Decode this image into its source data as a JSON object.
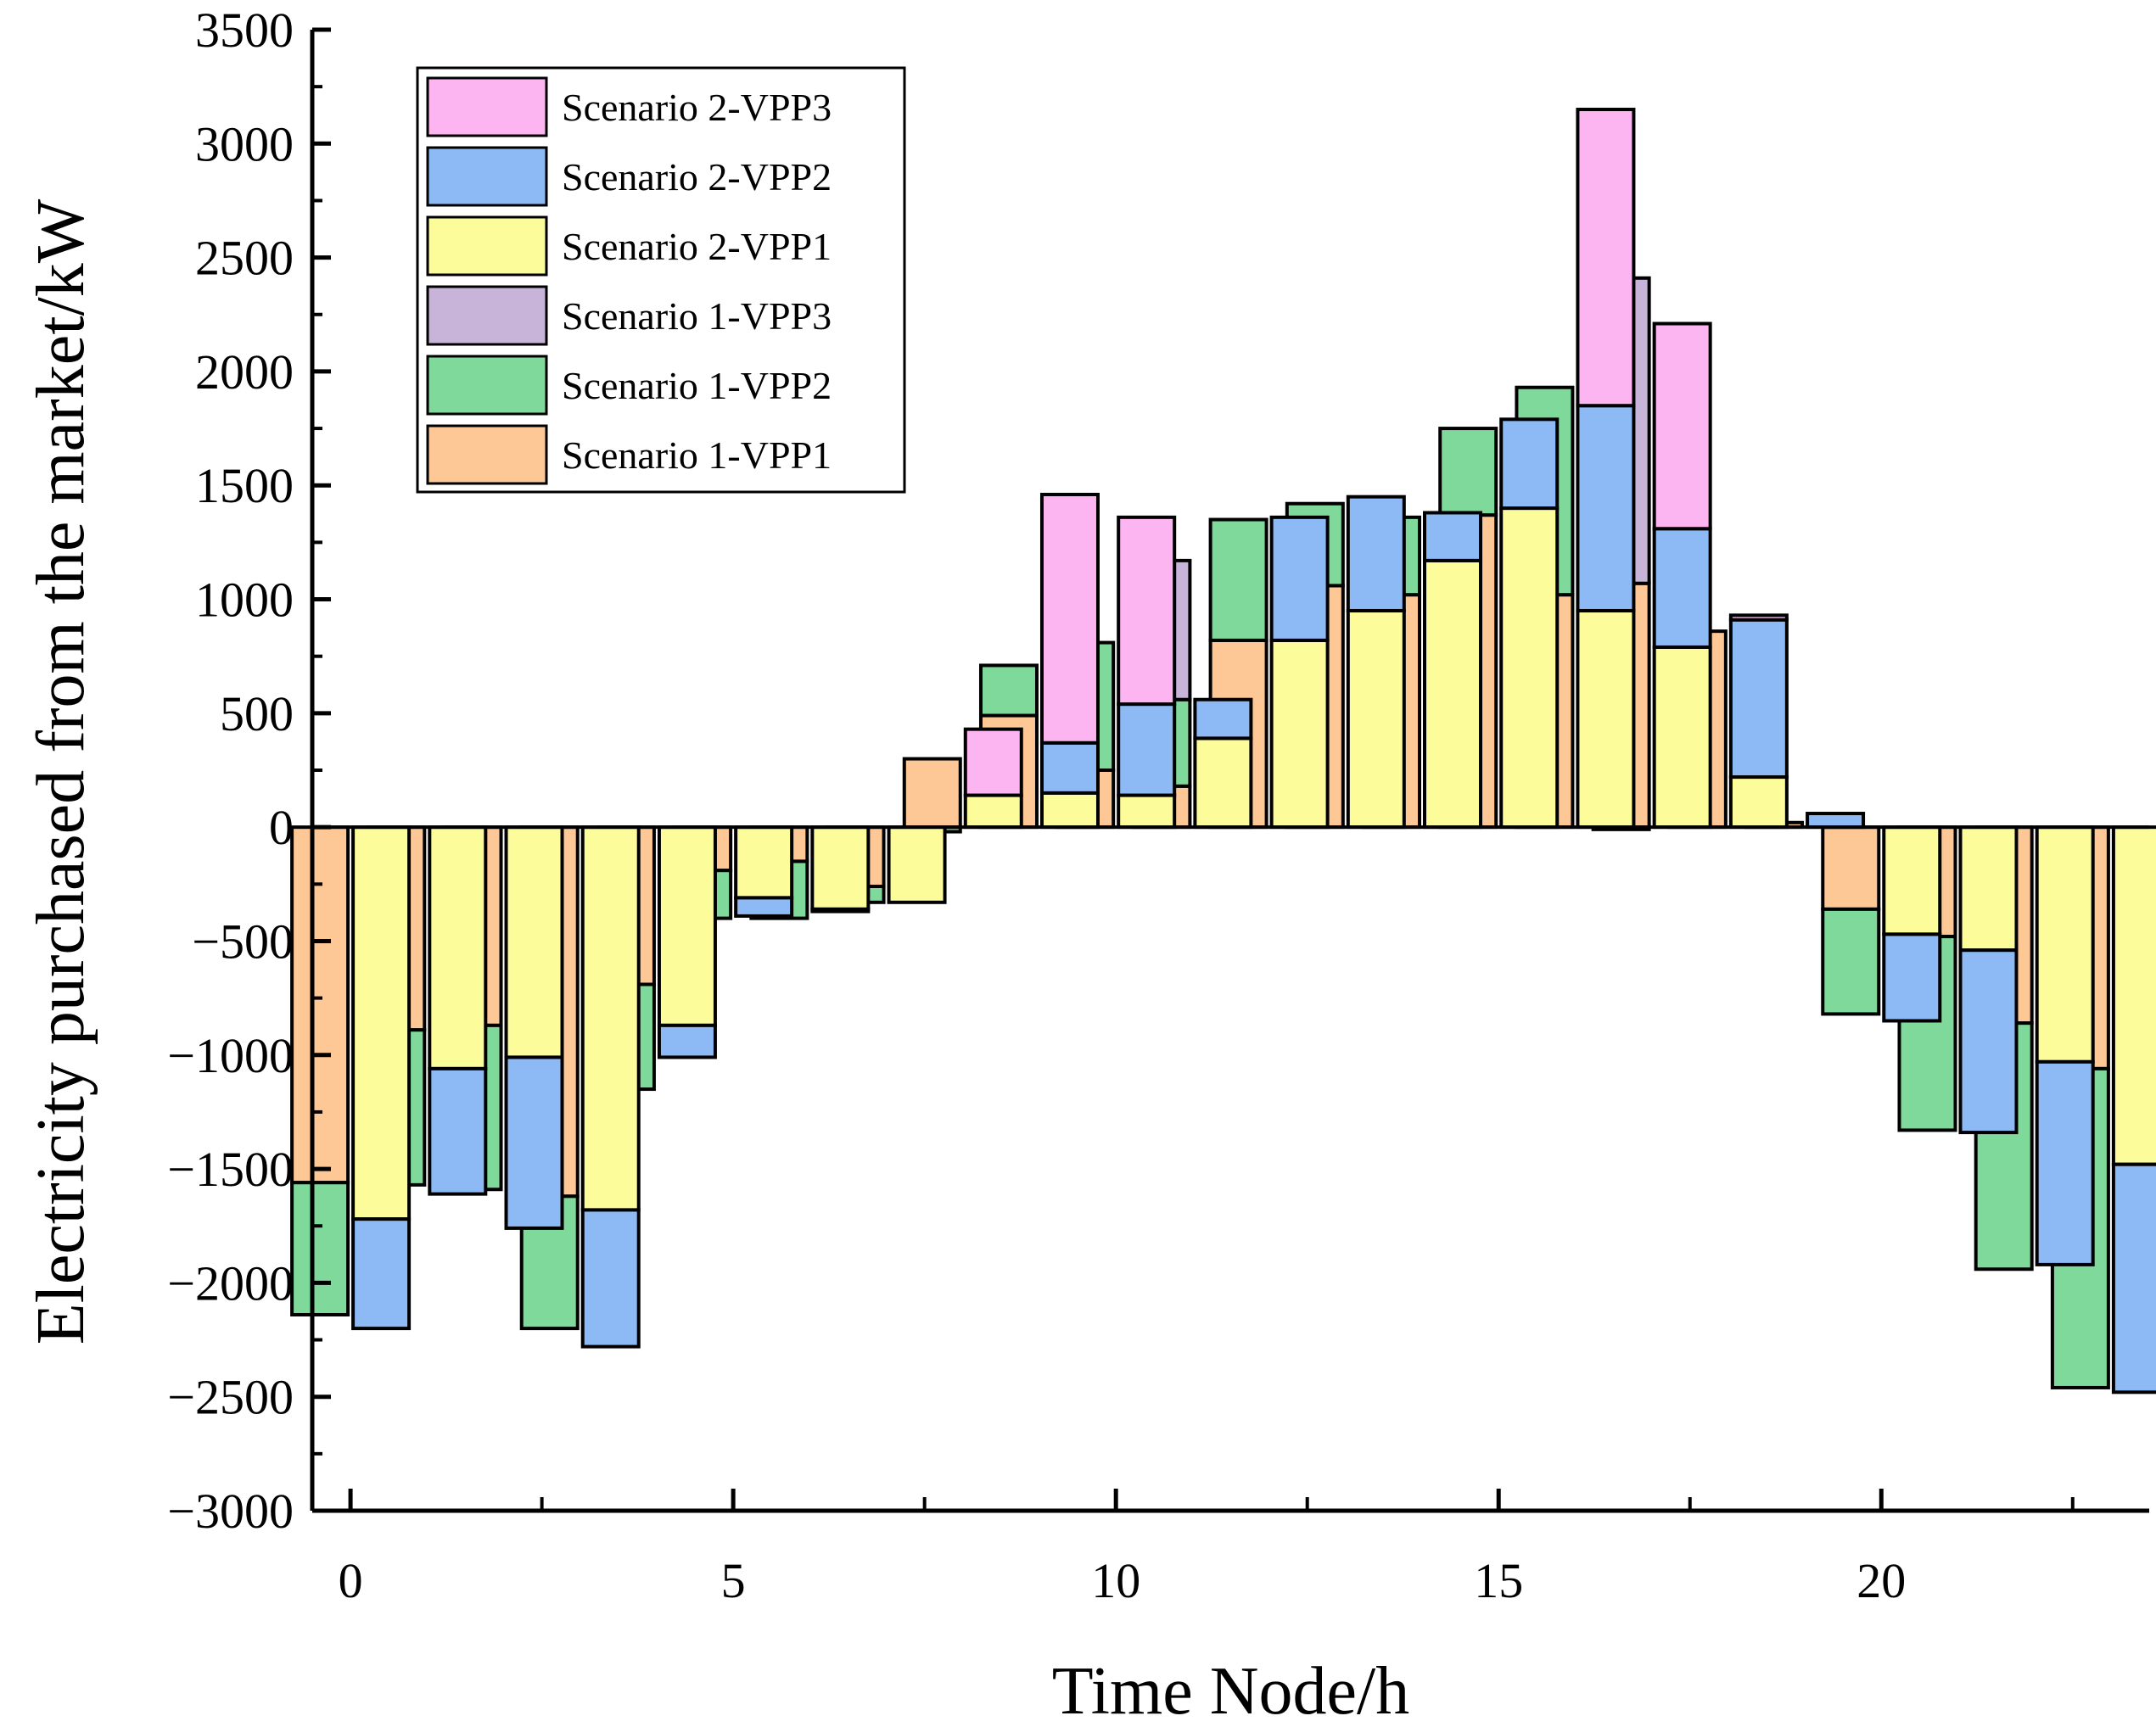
{
  "chart_data": {
    "type": "bar",
    "layout": "grouped-stacked",
    "xlabel": "Time Node/h",
    "ylabel": "Electricity purchased from the market/kW",
    "ylim": [
      -3000,
      3500
    ],
    "xlim": [
      -0.5,
      23.5
    ],
    "y_ticks": [
      3500,
      3000,
      2500,
      2000,
      1500,
      1000,
      500,
      0,
      -500,
      -1000,
      -1500,
      -2000,
      -2500,
      -3000
    ],
    "y_tick_labels": [
      "3500",
      "3000",
      "2500",
      "2000",
      "1500",
      "1000",
      "500",
      "0",
      "−500",
      "−1000",
      "−1500",
      "−2000",
      "−2500",
      "−3000"
    ],
    "x_ticks": [
      0,
      5,
      10,
      15,
      20
    ],
    "x_tick_labels": [
      "0",
      "5",
      "10",
      "15",
      "20"
    ],
    "x_minor_ticks": [
      2.5,
      7.5,
      12.5,
      17.5,
      22.5
    ],
    "categories": [
      0,
      1,
      2,
      3,
      4,
      5,
      6,
      7,
      8,
      9,
      10,
      11,
      12,
      13,
      14,
      15,
      16,
      17,
      18,
      19,
      20,
      21,
      22,
      23
    ],
    "legend_position": "top-left",
    "colors": {
      "Scenario 1-VPP1": "#FDC896",
      "Scenario 1-VPP2": "#7FD99A",
      "Scenario 1-VPP3": "#C8B4D8",
      "Scenario 2-VPP1": "#FDFC9A",
      "Scenario 2-VPP2": "#8DB9F4",
      "Scenario 2-VPP3": "#FCB5F1"
    },
    "legend": [
      "Scenario 2-VPP3",
      "Scenario 2-VPP2",
      "Scenario 2-VPP1",
      "Scenario 1-VPP3",
      "Scenario 1-VPP2",
      "Scenario 1-VPP1"
    ],
    "groups": [
      {
        "name": "Scenario 1",
        "series": [
          {
            "name": "Scenario 1-VPP1",
            "values": [
              -1560,
              -890,
              -870,
              -1620,
              -690,
              -190,
              -150,
              -260,
              300,
              490,
              250,
              180,
              820,
              1060,
              1020,
              1370,
              1020,
              1070,
              860,
              20,
              -360,
              -480,
              -860,
              -1060
            ]
          },
          {
            "name": "Scenario 1-VPP2",
            "values": [
              -580,
              -680,
              -720,
              -580,
              -460,
              -210,
              -250,
              -70,
              -20,
              220,
              560,
              380,
              530,
              360,
              340,
              380,
              910,
              -10,
              0,
              0,
              -460,
              -850,
              -1080,
              -1400
            ]
          },
          {
            "name": "Scenario 1-VPP3",
            "values": [
              0,
              0,
              0,
              0,
              0,
              0,
              0,
              0,
              0,
              0,
              0,
              610,
              0,
              0,
              0,
              0,
              0,
              1340,
              0,
              0,
              0,
              0,
              0,
              0
            ]
          }
        ]
      },
      {
        "name": "Scenario 2",
        "series": [
          {
            "name": "Scenario 2-VPP1",
            "values": [
              -1720,
              -1060,
              -1010,
              -1680,
              -870,
              -310,
              -360,
              -330,
              140,
              150,
              140,
              390,
              820,
              950,
              1170,
              1400,
              950,
              790,
              220,
              0,
              -470,
              -540,
              -1030,
              -1480
            ]
          },
          {
            "name": "Scenario 2-VPP2",
            "values": [
              -480,
              -550,
              -750,
              -600,
              -140,
              -80,
              -10,
              0,
              0,
              220,
              400,
              170,
              540,
              500,
              210,
              390,
              900,
              520,
              690,
              60,
              -380,
              -800,
              -890,
              -1000
            ]
          },
          {
            "name": "Scenario 2-VPP3",
            "values": [
              0,
              0,
              0,
              0,
              0,
              0,
              0,
              0,
              290,
              1090,
              820,
              0,
              0,
              0,
              0,
              0,
              1300,
              900,
              20,
              0,
              0,
              0,
              0,
              0
            ]
          }
        ]
      }
    ]
  }
}
